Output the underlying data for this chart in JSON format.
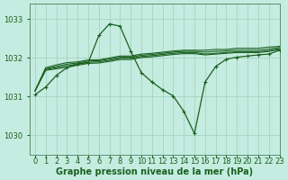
{
  "title": "Graphe pression niveau de la mer (hPa)",
  "bg_color": "#c5ece0",
  "grid_color": "#9dcfba",
  "line_color": "#1a6020",
  "xlim": [
    -0.5,
    23
  ],
  "ylim": [
    1029.5,
    1033.4
  ],
  "yticks": [
    1030,
    1031,
    1032,
    1033
  ],
  "xtick_labels": [
    "0",
    "1",
    "2",
    "3",
    "4",
    "5",
    "6",
    "7",
    "8",
    "9",
    "10",
    "11",
    "12",
    "13",
    "14",
    "15",
    "16",
    "17",
    "18",
    "19",
    "20",
    "21",
    "22",
    "23"
  ],
  "flat_lines": [
    [
      1031.15,
      1031.75,
      1031.82,
      1031.88,
      1031.9,
      1031.95,
      1031.95,
      1032.0,
      1032.05,
      1032.05,
      1032.1,
      1032.12,
      1032.15,
      1032.18,
      1032.2,
      1032.2,
      1032.2,
      1032.22,
      1032.22,
      1032.25,
      1032.25,
      1032.25,
      1032.28,
      1032.3
    ],
    [
      1031.15,
      1031.72,
      1031.78,
      1031.84,
      1031.87,
      1031.92,
      1031.93,
      1031.97,
      1032.02,
      1032.02,
      1032.07,
      1032.09,
      1032.12,
      1032.15,
      1032.17,
      1032.17,
      1032.15,
      1032.17,
      1032.18,
      1032.2,
      1032.2,
      1032.2,
      1032.23,
      1032.27
    ],
    [
      1031.15,
      1031.7,
      1031.75,
      1031.8,
      1031.84,
      1031.89,
      1031.9,
      1031.94,
      1031.99,
      1031.99,
      1032.04,
      1032.06,
      1032.09,
      1032.12,
      1032.14,
      1032.14,
      1032.1,
      1032.12,
      1032.14,
      1032.16,
      1032.16,
      1032.16,
      1032.19,
      1032.24
    ],
    [
      1031.15,
      1031.68,
      1031.72,
      1031.76,
      1031.81,
      1031.86,
      1031.87,
      1031.91,
      1031.96,
      1031.96,
      1032.01,
      1032.03,
      1032.06,
      1032.09,
      1032.11,
      1032.11,
      1032.08,
      1032.1,
      1032.12,
      1032.14,
      1032.14,
      1032.14,
      1032.17,
      1032.22
    ]
  ],
  "main_series": [
    1031.05,
    1031.25,
    1031.55,
    1031.75,
    1031.85,
    1031.88,
    1032.58,
    1032.88,
    1032.82,
    1032.18,
    1031.62,
    1031.38,
    1031.18,
    1031.02,
    1030.62,
    1030.05,
    1031.38,
    1031.78,
    1031.97,
    1032.02,
    1032.05,
    1032.08,
    1032.1,
    1032.2
  ],
  "fontsize_label": 7,
  "fontsize_tick": 6.0
}
